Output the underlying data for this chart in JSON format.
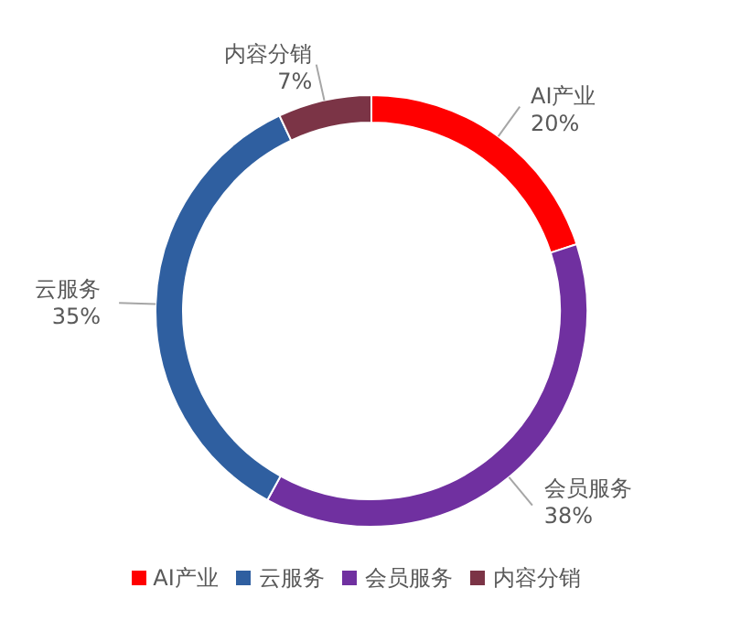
{
  "chart_data": {
    "type": "donut",
    "categories": [
      "AI产业",
      "会员服务",
      "云服务",
      "内容分销"
    ],
    "values": [
      20,
      38,
      35,
      7
    ],
    "colors": [
      "#ff0000",
      "#7030a0",
      "#2f5fa0",
      "#7b3446"
    ],
    "value_labels": [
      "20%",
      "38%",
      "35%",
      "7%"
    ],
    "legend": "bottom"
  }
}
